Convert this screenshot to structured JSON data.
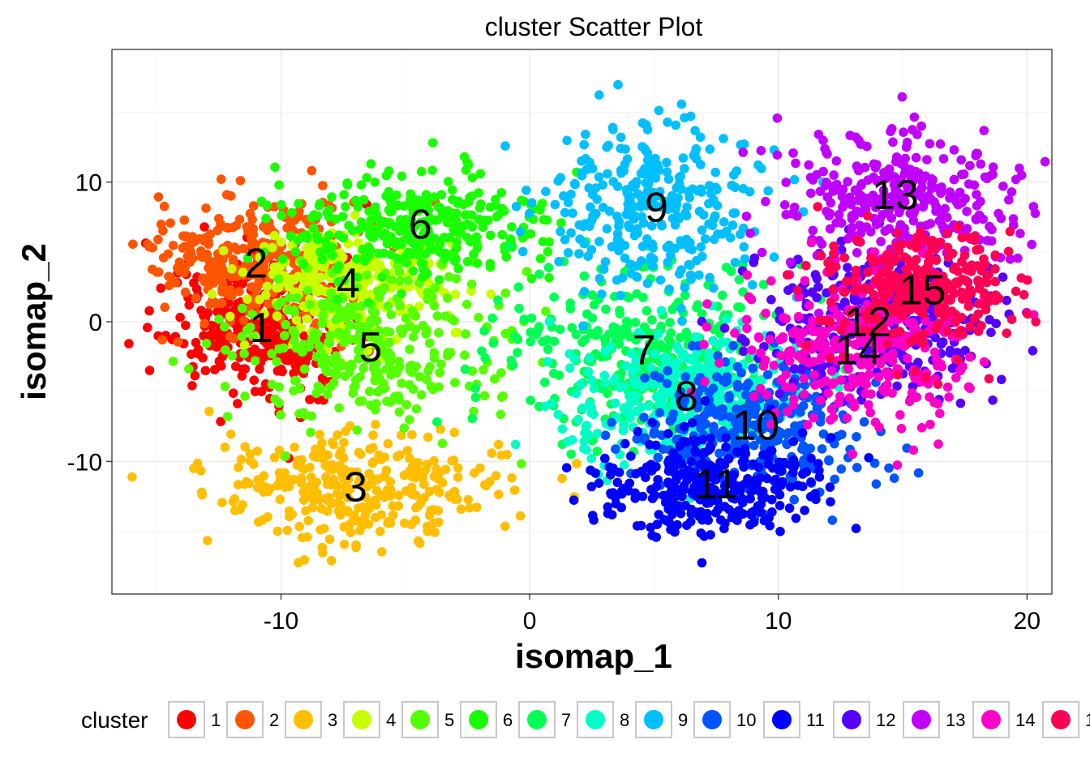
{
  "chart_data": {
    "type": "scatter",
    "title": "cluster Scatter Plot",
    "xlabel": "isomap_1",
    "ylabel": "isomap_2",
    "xlim": [
      -16.8,
      21.0
    ],
    "ylim": [
      -19.5,
      19.5
    ],
    "x_ticks": [
      -10,
      0,
      10,
      20
    ],
    "x_tick_labels": [
      "-10",
      "0",
      "10",
      "20"
    ],
    "y_ticks": [
      -10,
      0,
      10
    ],
    "y_tick_labels": [
      "-10",
      "0",
      "10"
    ],
    "grid": true,
    "legend": {
      "title": "cluster",
      "position": "bottom"
    },
    "series": [
      {
        "name": "1",
        "color": "#FF0000",
        "center": [
          -10.8,
          -0.4
        ],
        "spread": [
          1.8,
          2.6
        ]
      },
      {
        "name": "2",
        "color": "#FF5500",
        "center": [
          -11.0,
          4.2
        ],
        "spread": [
          2.3,
          2.3
        ]
      },
      {
        "name": "3",
        "color": "#FFBF00",
        "center": [
          -7.0,
          -11.8
        ],
        "spread": [
          3.0,
          2.0
        ]
      },
      {
        "name": "4",
        "color": "#C8FF00",
        "center": [
          -7.3,
          2.8
        ],
        "spread": [
          2.0,
          2.0
        ]
      },
      {
        "name": "5",
        "color": "#55FF00",
        "center": [
          -6.4,
          -1.8
        ],
        "spread": [
          2.6,
          2.8
        ]
      },
      {
        "name": "6",
        "color": "#1AFF00",
        "center": [
          -4.4,
          7.0
        ],
        "spread": [
          2.6,
          2.0
        ]
      },
      {
        "name": "7",
        "color": "#00FF55",
        "center": [
          4.6,
          -2.0
        ],
        "spread": [
          2.8,
          3.2
        ]
      },
      {
        "name": "8",
        "color": "#00FFC8",
        "center": [
          6.3,
          -5.3
        ],
        "spread": [
          2.2,
          2.4
        ]
      },
      {
        "name": "9",
        "color": "#00BFFF",
        "center": [
          5.1,
          8.2
        ],
        "spread": [
          2.2,
          3.0
        ]
      },
      {
        "name": "10",
        "color": "#0055FF",
        "center": [
          9.1,
          -7.4
        ],
        "spread": [
          2.4,
          2.4
        ]
      },
      {
        "name": "11",
        "color": "#0000FF",
        "center": [
          7.5,
          -11.6
        ],
        "spread": [
          2.3,
          1.8
        ]
      },
      {
        "name": "12",
        "color": "#5500FF",
        "center": [
          13.6,
          0.0
        ],
        "spread": [
          2.4,
          2.6
        ]
      },
      {
        "name": "13",
        "color": "#BF00FF",
        "center": [
          14.7,
          9.1
        ],
        "spread": [
          2.6,
          2.4
        ]
      },
      {
        "name": "14",
        "color": "#FF00C8",
        "center": [
          13.2,
          -2.0
        ],
        "spread": [
          2.3,
          2.6
        ]
      },
      {
        "name": "15",
        "color": "#FF0055",
        "center": [
          15.8,
          2.3
        ],
        "spread": [
          2.0,
          2.2
        ]
      }
    ]
  }
}
